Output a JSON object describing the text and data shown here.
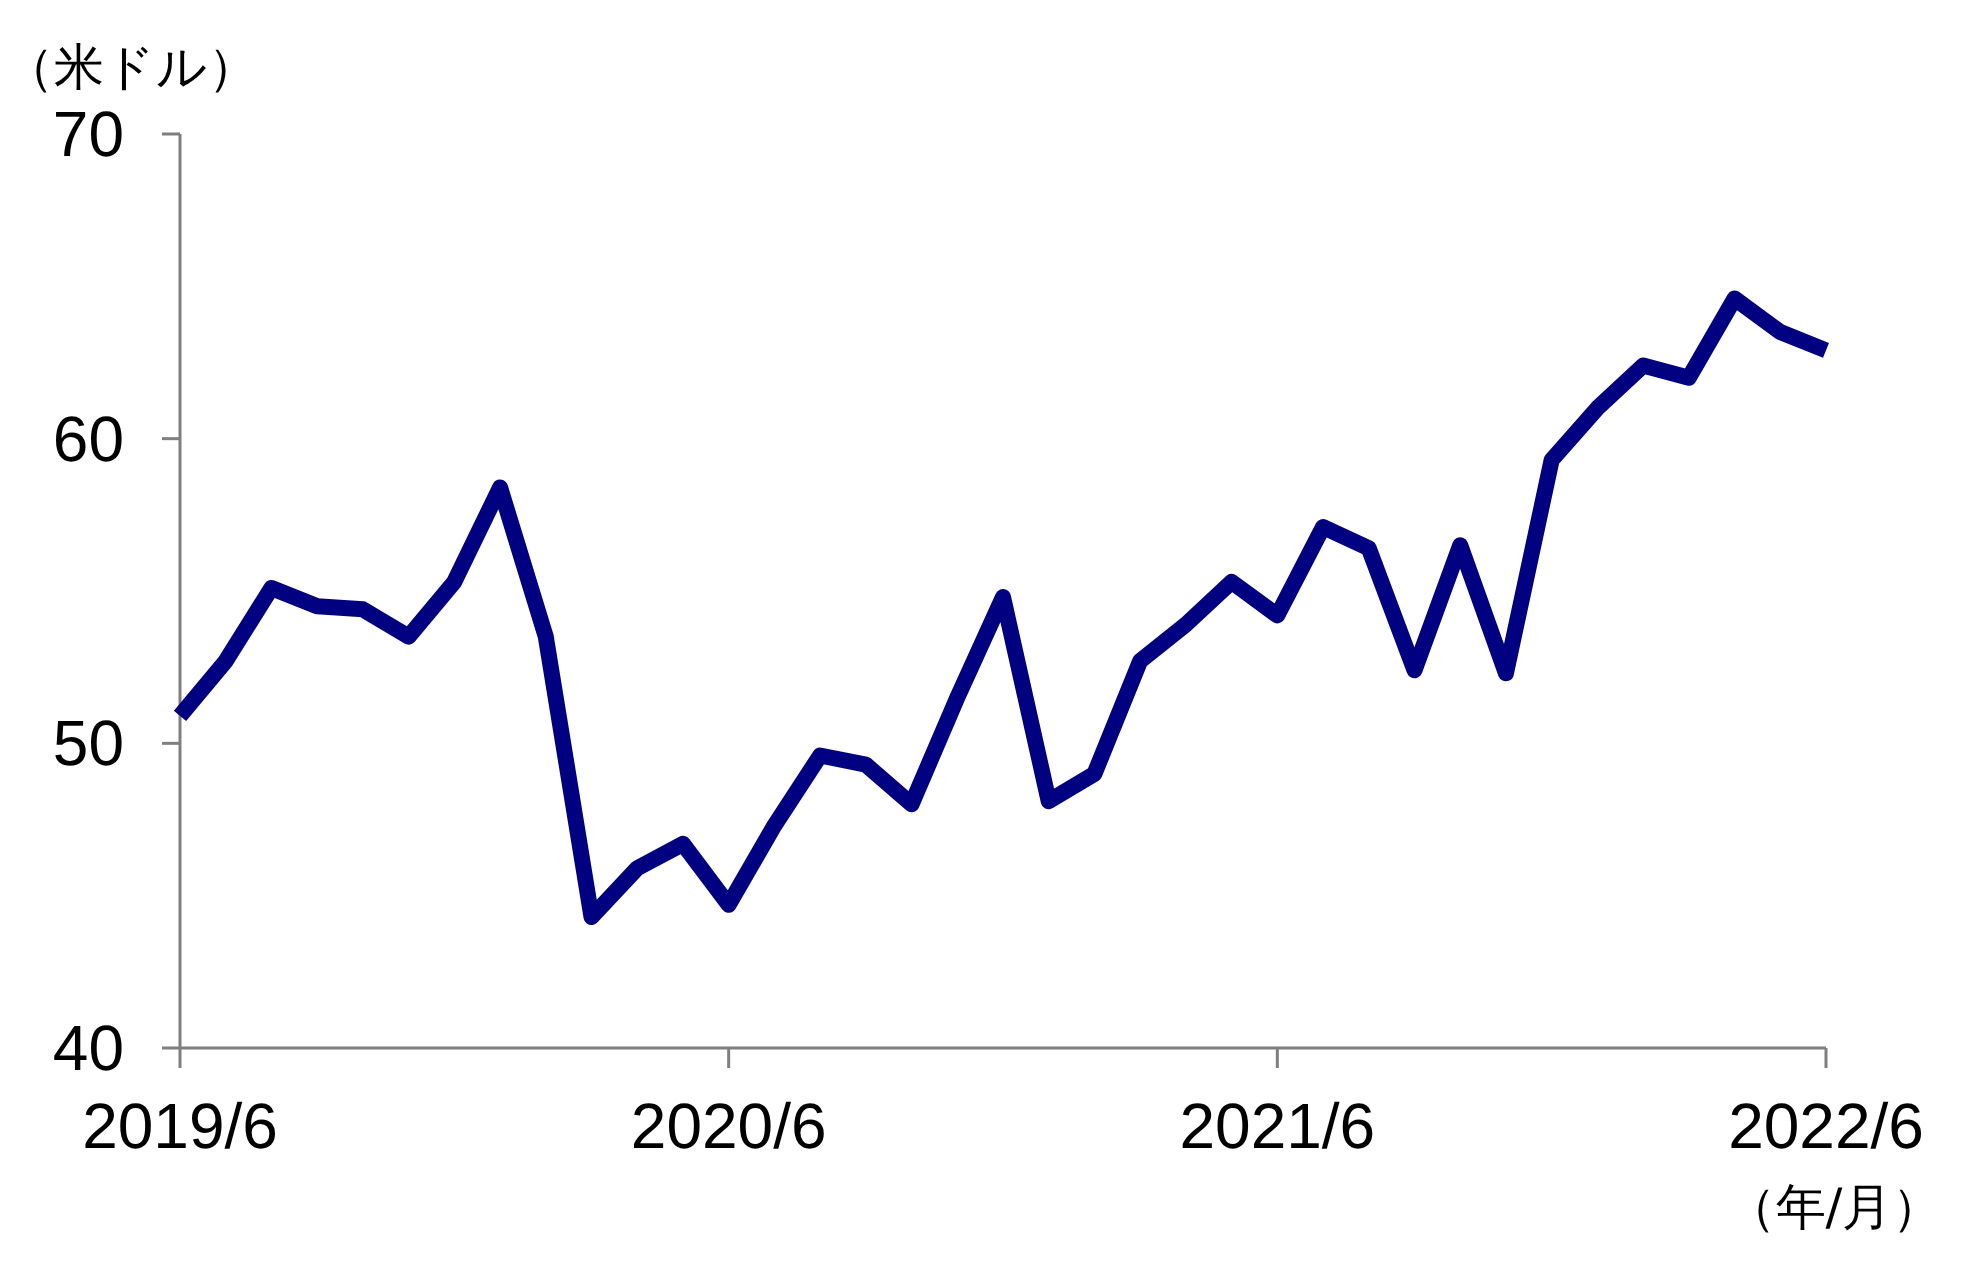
{
  "chart_data": {
    "type": "line",
    "ylabel": "（米ドル）",
    "xlabel": "（年/月）",
    "x": [
      "2019-06",
      "2019-07",
      "2019-08",
      "2019-09",
      "2019-10",
      "2019-11",
      "2019-12",
      "2020-01",
      "2020-02",
      "2020-03",
      "2020-04",
      "2020-05",
      "2020-06",
      "2020-07",
      "2020-08",
      "2020-09",
      "2020-10",
      "2020-11",
      "2020-12",
      "2021-01",
      "2021-02",
      "2021-03",
      "2021-04",
      "2021-05",
      "2021-06",
      "2021-07",
      "2021-08",
      "2021-09",
      "2021-10",
      "2021-11",
      "2021-12",
      "2022-01",
      "2022-02",
      "2022-03",
      "2022-04",
      "2022-05",
      "2022-06"
    ],
    "series": [
      {
        "color": "#000080",
        "values": [
          50.9,
          52.7,
          55.1,
          54.5,
          54.4,
          53.5,
          55.3,
          58.4,
          53.5,
          44.3,
          45.9,
          46.7,
          44.7,
          47.3,
          49.6,
          49.3,
          48.0,
          51.5,
          54.8,
          48.1,
          49.0,
          52.7,
          53.9,
          55.3,
          54.2,
          57.1,
          56.4,
          52.4,
          56.5,
          52.3,
          59.3,
          61.0,
          62.4,
          62.0,
          64.6,
          63.5,
          62.9
        ]
      }
    ],
    "xlim": [
      "2019-06",
      "2022-06"
    ],
    "ylim": [
      40,
      70
    ],
    "xticks": [
      {
        "value": "2019-06",
        "label": "2019/6"
      },
      {
        "value": "2020-06",
        "label": "2020/6"
      },
      {
        "value": "2021-06",
        "label": "2021/6"
      },
      {
        "value": "2022-06",
        "label": "2022/6"
      }
    ],
    "yticks": [
      40,
      50,
      60,
      70
    ]
  }
}
